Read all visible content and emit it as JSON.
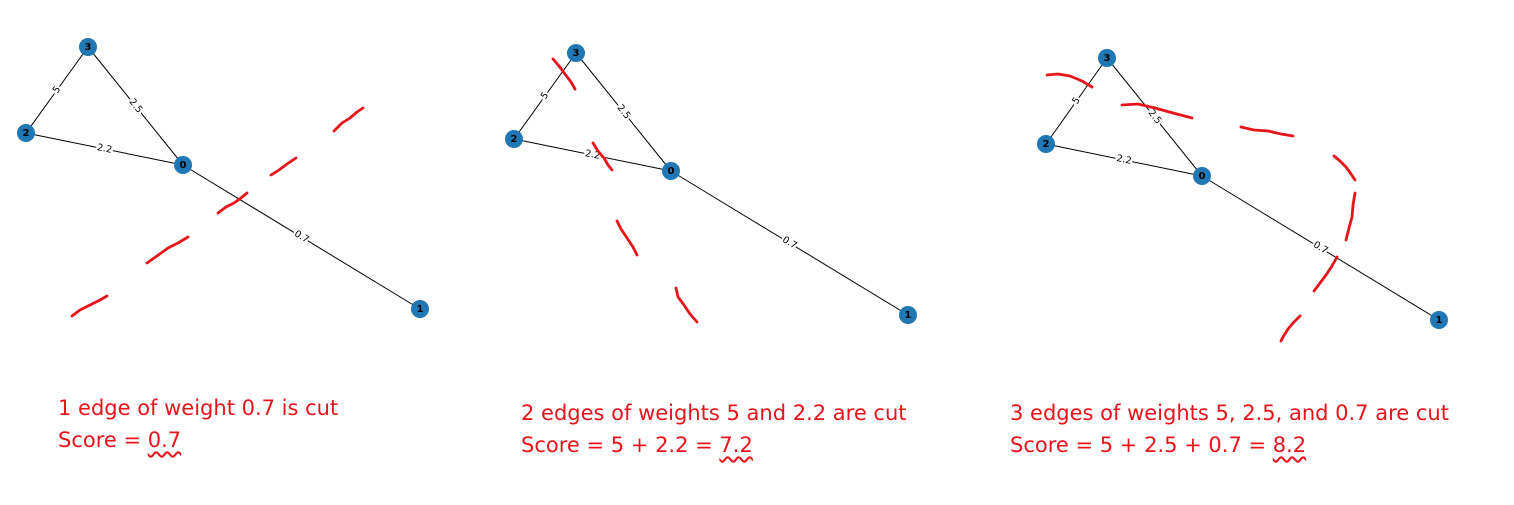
{
  "colors": {
    "node": "#1f77b4",
    "edge": "#000000",
    "annotation": "#e8141b"
  },
  "panels": [
    {
      "nodes": [
        {
          "id": "3",
          "label": "3"
        },
        {
          "id": "2",
          "label": "2"
        },
        {
          "id": "0",
          "label": "0"
        },
        {
          "id": "1",
          "label": "1"
        }
      ],
      "edges": [
        {
          "from": "3",
          "to": "2",
          "weight": "5"
        },
        {
          "from": "3",
          "to": "0",
          "weight": "2.5"
        },
        {
          "from": "2",
          "to": "0",
          "weight": "2.2"
        },
        {
          "from": "0",
          "to": "1",
          "weight": "0.7"
        }
      ],
      "cut_edges": [
        "0.7"
      ],
      "caption_line1": "1 edge of weight 0.7 is cut",
      "score_prefix": "Score = ",
      "score_value": "0.7"
    },
    {
      "nodes": [
        {
          "id": "3",
          "label": "3"
        },
        {
          "id": "2",
          "label": "2"
        },
        {
          "id": "0",
          "label": "0"
        },
        {
          "id": "1",
          "label": "1"
        }
      ],
      "edges": [
        {
          "from": "3",
          "to": "2",
          "weight": "5"
        },
        {
          "from": "3",
          "to": "0",
          "weight": "2.5"
        },
        {
          "from": "2",
          "to": "0",
          "weight": "2.2"
        },
        {
          "from": "0",
          "to": "1",
          "weight": "0.7"
        }
      ],
      "cut_edges": [
        "5",
        "2.2"
      ],
      "caption_line1": "2 edges of weights 5 and 2.2 are cut",
      "score_prefix": "Score = 5 + 2.2 = ",
      "score_value": "7.2"
    },
    {
      "nodes": [
        {
          "id": "3",
          "label": "3"
        },
        {
          "id": "2",
          "label": "2"
        },
        {
          "id": "0",
          "label": "0"
        },
        {
          "id": "1",
          "label": "1"
        }
      ],
      "edges": [
        {
          "from": "3",
          "to": "2",
          "weight": "5"
        },
        {
          "from": "3",
          "to": "0",
          "weight": "2.5"
        },
        {
          "from": "2",
          "to": "0",
          "weight": "2.2"
        },
        {
          "from": "0",
          "to": "1",
          "weight": "0.7"
        }
      ],
      "cut_edges": [
        "5",
        "2.5",
        "0.7"
      ],
      "caption_line1": "3 edges of weights 5, 2.5, and 0.7 are cut",
      "score_prefix": "Score = 5 + 2.5 + 0.7 = ",
      "score_value": "8.2"
    }
  ]
}
